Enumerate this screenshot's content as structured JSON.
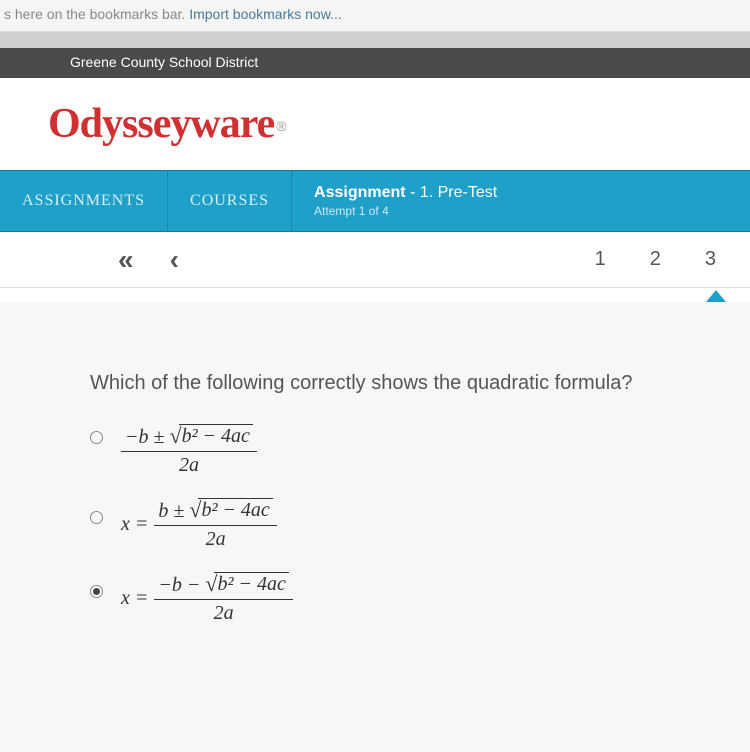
{
  "browser": {
    "bookmarks_hint_prefix": "s here on the bookmarks bar. ",
    "import_link": "Import bookmarks now..."
  },
  "district_bar": {
    "text": "Greene County School District"
  },
  "logo": {
    "text": "Odysseyware",
    "registered": "®"
  },
  "nav": {
    "assignments": "ASSIGNMENTS",
    "courses": "COURSES",
    "assignment_label": "Assignment",
    "assignment_title": " - 1. Pre-Test",
    "attempt": "Attempt 1 of 4"
  },
  "pager": {
    "double_back": "«",
    "back": "‹",
    "n1": "1",
    "n2": "2",
    "n3": "3"
  },
  "question": {
    "text": "Which of the following correctly shows the quadratic formula?",
    "options": [
      {
        "selected": false,
        "prefix": "",
        "numerator_pre": "−b ± ",
        "sqrt_body": "b² − 4ac",
        "denominator": "2a"
      },
      {
        "selected": false,
        "prefix": "x = ",
        "numerator_pre": "b ± ",
        "sqrt_body": "b² − 4ac",
        "denominator": "2a"
      },
      {
        "selected": true,
        "prefix": "x = ",
        "numerator_pre": "−b − ",
        "sqrt_body": "b² − 4ac",
        "denominator": "2a"
      }
    ]
  },
  "colors": {
    "brand_red": "#d13030",
    "nav_blue": "#1fa0c9",
    "district_gray": "#4a4a4a",
    "content_bg": "#f7f7f5"
  }
}
